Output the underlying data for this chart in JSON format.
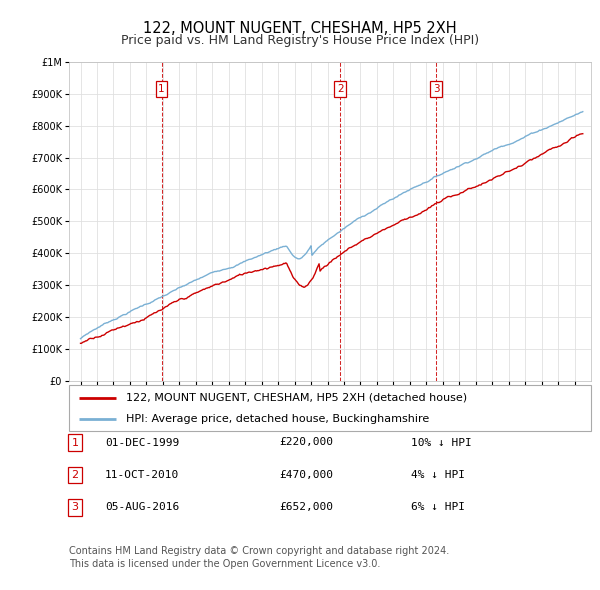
{
  "title": "122, MOUNT NUGENT, CHESHAM, HP5 2XH",
  "subtitle": "Price paid vs. HM Land Registry's House Price Index (HPI)",
  "ylim": [
    0,
    1000000
  ],
  "yticks": [
    0,
    100000,
    200000,
    300000,
    400000,
    500000,
    600000,
    700000,
    800000,
    900000,
    1000000
  ],
  "ytick_labels": [
    "£0",
    "£100K",
    "£200K",
    "£300K",
    "£400K",
    "£500K",
    "£600K",
    "£700K",
    "£800K",
    "£900K",
    "£1M"
  ],
  "xlim": [
    1994.3,
    2026.0
  ],
  "xticks": [
    1995,
    1996,
    1997,
    1998,
    1999,
    2000,
    2001,
    2002,
    2003,
    2004,
    2005,
    2006,
    2007,
    2008,
    2009,
    2010,
    2011,
    2012,
    2013,
    2014,
    2015,
    2016,
    2017,
    2018,
    2019,
    2020,
    2021,
    2022,
    2023,
    2024,
    2025
  ],
  "sale_dates": [
    "01-DEC-1999",
    "11-OCT-2010",
    "05-AUG-2016"
  ],
  "sale_prices": [
    220000,
    470000,
    652000
  ],
  "sale_prices_str": [
    "£220,000",
    "£470,000",
    "£652,000"
  ],
  "sale_years": [
    1999.92,
    2010.78,
    2016.6
  ],
  "sale_hpi_pct": [
    "10% ↓ HPI",
    "4% ↓ HPI",
    "6% ↓ HPI"
  ],
  "legend_entries": [
    "122, MOUNT NUGENT, CHESHAM, HP5 2XH (detached house)",
    "HPI: Average price, detached house, Buckinghamshire"
  ],
  "footnote1": "Contains HM Land Registry data © Crown copyright and database right 2024.",
  "footnote2": "This data is licensed under the Open Government Licence v3.0.",
  "red_color": "#cc0000",
  "blue_color": "#7ab0d4",
  "grid_color": "#e0e0e0",
  "background_color": "#ffffff",
  "title_fontsize": 10.5,
  "subtitle_fontsize": 9,
  "tick_fontsize": 7,
  "legend_fontsize": 8,
  "table_fontsize": 8,
  "footnote_fontsize": 7
}
